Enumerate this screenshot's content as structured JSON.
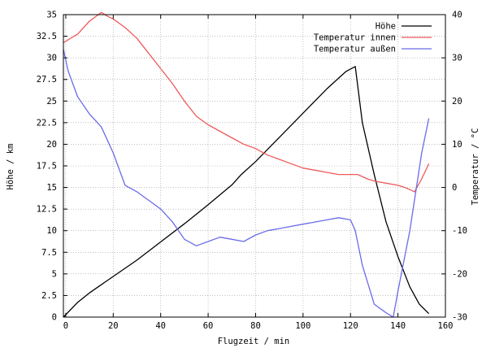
{
  "chart_data": {
    "type": "line",
    "xlabel": "Flugzeit / min",
    "ylabel": "Höhe / km",
    "y2label": "Temperatur / °C",
    "xlim": [
      -1,
      160
    ],
    "ylim": [
      0,
      35
    ],
    "y2lim": [
      -30,
      40
    ],
    "x_ticks": [
      0,
      20,
      40,
      60,
      80,
      100,
      120,
      140,
      160
    ],
    "y_ticks": [
      0,
      2.5,
      5,
      7.5,
      10,
      12.5,
      15,
      17.5,
      20,
      22.5,
      25,
      27.5,
      30,
      32.5,
      35
    ],
    "y_tick_labels": [
      "0",
      "2.5",
      "5",
      "7.5",
      "10",
      "12.5",
      "15",
      "17.5",
      "20",
      "22.5",
      "25",
      "27.5",
      "30",
      "32.5",
      "35"
    ],
    "y2_ticks": [
      -30,
      -20,
      -10,
      0,
      10,
      20,
      30,
      40
    ],
    "grid": true,
    "legend_position": "top-right",
    "series": [
      {
        "name": "Höhe",
        "axis": "left",
        "color": "#000000",
        "x": [
          -1,
          5,
          10,
          20,
          30,
          40,
          50,
          60,
          70,
          74,
          80,
          90,
          100,
          110,
          118,
          122,
          125,
          130,
          135,
          140,
          145,
          149,
          153
        ],
        "y": [
          0,
          1.7,
          2.8,
          4.7,
          6.6,
          8.7,
          10.8,
          13.0,
          15.3,
          16.5,
          18.0,
          20.8,
          23.6,
          26.4,
          28.4,
          29.0,
          22.5,
          16.5,
          11.0,
          7.0,
          3.5,
          1.5,
          0.4
        ]
      },
      {
        "name": "Temperatur innen",
        "axis": "right",
        "color": "#ef5a5a",
        "x": [
          -1,
          2,
          5,
          10,
          15,
          18,
          20,
          25,
          30,
          35,
          40,
          45,
          50,
          55,
          60,
          65,
          70,
          75,
          80,
          85,
          90,
          95,
          100,
          105,
          110,
          115,
          120,
          123,
          127,
          130,
          135,
          140,
          143,
          145,
          147,
          150,
          153
        ],
        "y": [
          33.5,
          34.5,
          35.5,
          38.5,
          40.5,
          39.5,
          39.0,
          37.0,
          34.5,
          31.0,
          27.5,
          24.0,
          20.0,
          16.5,
          14.5,
          13.0,
          11.5,
          10.0,
          9.0,
          7.5,
          6.5,
          5.5,
          4.5,
          4.0,
          3.5,
          3.0,
          3.0,
          3.0,
          2.0,
          1.5,
          1.0,
          0.5,
          0.0,
          -0.5,
          -1.0,
          2.0,
          5.5
        ]
      },
      {
        "name": "Temperatur außen",
        "axis": "right",
        "color": "#6b6bea",
        "x": [
          -1,
          1,
          5,
          10,
          15,
          20,
          25,
          30,
          35,
          40,
          45,
          50,
          55,
          60,
          65,
          70,
          75,
          80,
          85,
          90,
          95,
          100,
          105,
          110,
          115,
          120,
          122,
          125,
          130,
          135,
          138,
          140,
          145,
          150,
          153
        ],
        "y": [
          32.0,
          27.0,
          21.0,
          17.0,
          14.0,
          8.0,
          0.5,
          -1.0,
          -3.0,
          -5.0,
          -8.0,
          -12.0,
          -13.5,
          -12.5,
          -11.5,
          -12.0,
          -12.5,
          -11.0,
          -10.0,
          -9.5,
          -9.0,
          -8.5,
          -8.0,
          -7.5,
          -7.0,
          -7.5,
          -10.0,
          -18.0,
          -27.0,
          -29.0,
          -30.0,
          -24.0,
          -10.0,
          8.0,
          16.0
        ]
      }
    ]
  }
}
